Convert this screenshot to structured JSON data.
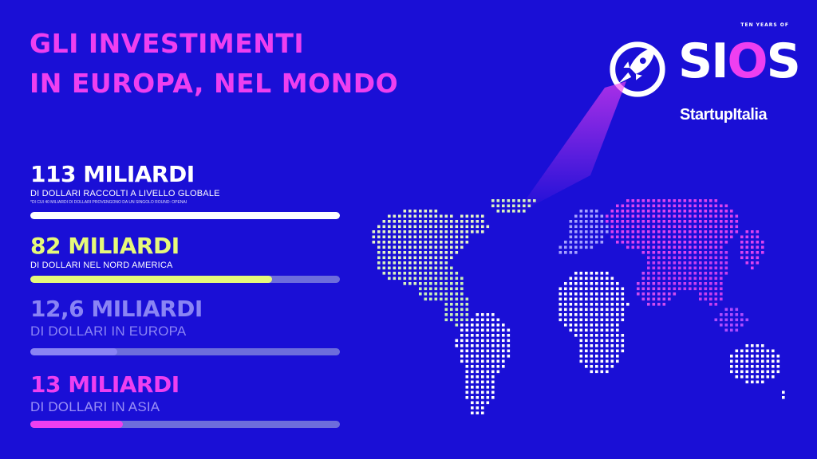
{
  "title": {
    "line1": "GLI INVESTIMENTI",
    "line2": "IN EUROPA, NEL MONDO"
  },
  "stats": [
    {
      "value": "113 MILIARDI",
      "label": "DI DOLLARI RACCOLTI A LIVELLO GLOBALE",
      "note": "*DI CUI 40 MILIARDI DI DOLLARI PROVENGONO DA UN SINGOLO ROUND: OPENAI",
      "fraction": 1.0,
      "color": "#ffffff"
    },
    {
      "value": "82 MILIARDI",
      "label": "DI DOLLARI NEL NORD AMERICA",
      "fraction": 0.78,
      "color": "#e6f97a"
    },
    {
      "value": "12,6 MILIARDI",
      "label": "DI DOLLARI IN EUROPA",
      "fraction": 0.28,
      "color": "#8a84f4"
    },
    {
      "value": "13 MILIARDI",
      "label": "DI DOLLARI IN ASIA",
      "fraction": 0.3,
      "color": "#ee3ff0"
    }
  ],
  "logo": {
    "tagline": "TEN YEARS OF",
    "name_part1": "SI",
    "name_part2": "O",
    "name_part3": "S",
    "brand": "StartupItalia"
  },
  "colors": {
    "background": "#1a0fd6",
    "accent_pink": "#ee3ff0",
    "accent_lime": "#e6f97a",
    "track": "#6d6ddc"
  },
  "icons": [
    "rocket-icon",
    "world-map-dots"
  ]
}
